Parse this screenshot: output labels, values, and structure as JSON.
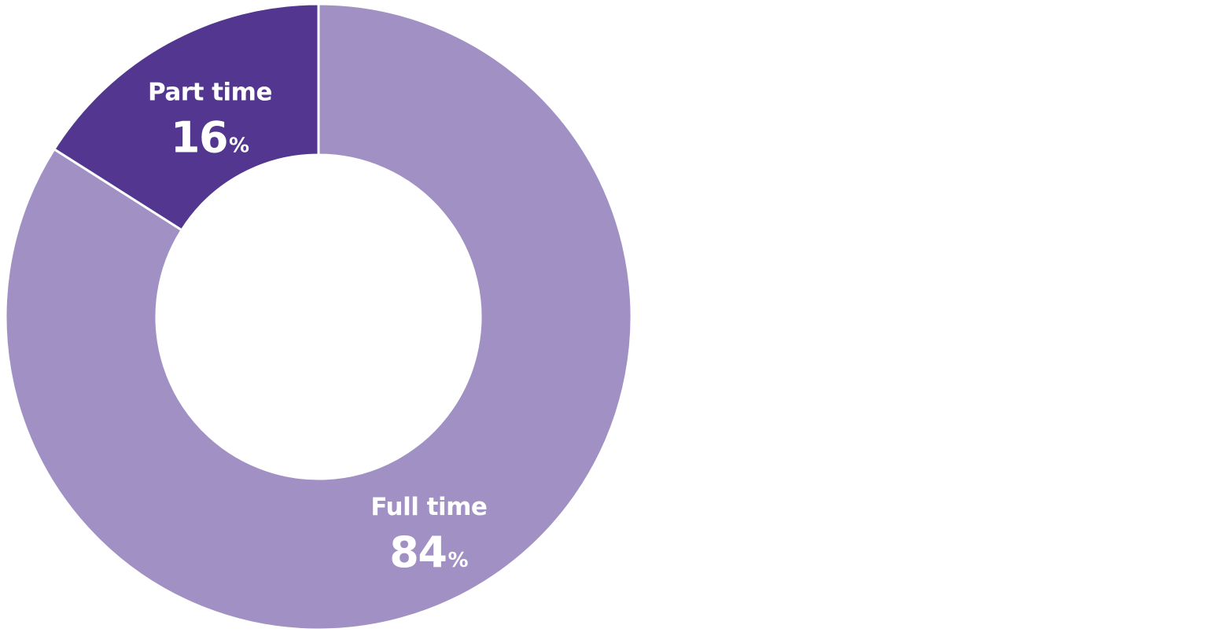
{
  "chart_data": {
    "type": "pie",
    "variant": "donut",
    "categories": [
      "Full time",
      "Part time"
    ],
    "values": [
      84,
      16
    ],
    "unit": "%",
    "colors": [
      "#a190c4",
      "#52368f"
    ],
    "title": "",
    "legend": "none",
    "start_angle": "12 o'clock",
    "direction": "clockwise"
  }
}
